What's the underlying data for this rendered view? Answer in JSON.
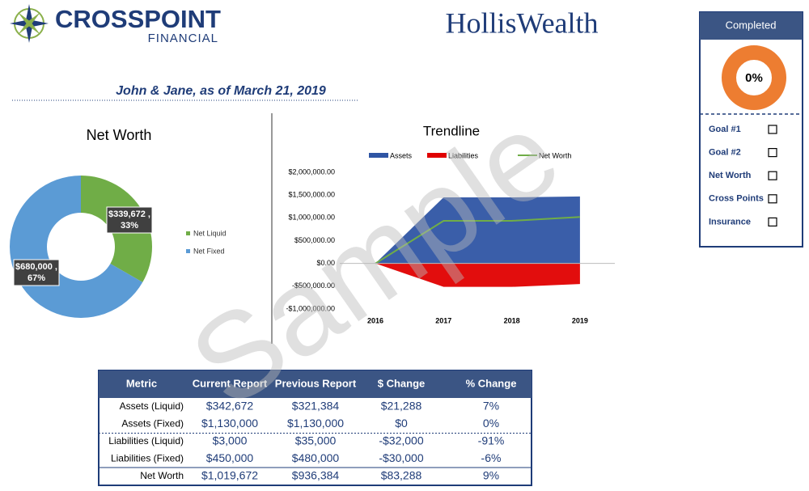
{
  "header": {
    "logo_left": "CROSSPOINT",
    "logo_left_sub": "FINANCIAL",
    "logo_right": "HollisWealth",
    "subtitle": "John & Jane, as of  March 21, 2019",
    "watermark": "Sample"
  },
  "checklist": {
    "title": "Completed",
    "value": 0,
    "value_label": "0%",
    "color": "#ed7d31",
    "items": [
      "Goal #1",
      "Goal #2",
      "Net Worth",
      "Cross Points",
      "Insurance"
    ]
  },
  "chart_data": [
    {
      "type": "donut",
      "title": "Net Worth",
      "categories": [
        "Net Liquid",
        "Net Fixed"
      ],
      "values": [
        339672,
        680000
      ],
      "value_labels": [
        [
          "$339,672 ,",
          "33%"
        ],
        [
          "$680,000 ,",
          "67%"
        ]
      ],
      "colors": [
        "#70ad47",
        "#5b9bd5"
      ]
    },
    {
      "type": "area",
      "title": "Trendline",
      "categories": [
        "2016",
        "2017",
        "2018",
        "2019"
      ],
      "series": [
        {
          "name": "Assets",
          "color": "#2f55a4",
          "kind": "area",
          "values": [
            0,
            1450000,
            1450000,
            1470000
          ]
        },
        {
          "name": "Liabilities",
          "color": "#e00000",
          "kind": "area",
          "values": [
            0,
            -515000,
            -515000,
            -453000
          ]
        },
        {
          "name": "Net Worth",
          "color": "#70ad47",
          "kind": "line",
          "values": [
            0,
            935000,
            935000,
            1020000
          ]
        }
      ],
      "ylim": [
        -1000000,
        2000000
      ],
      "yticks": [
        {
          "value": -1000000,
          "label": "-$1,000,000.00"
        },
        {
          "value": -500000,
          "label": "-$500,000.00"
        },
        {
          "value": 0,
          "label": "$0.00"
        },
        {
          "value": 500000,
          "label": "$500,000.00"
        },
        {
          "value": 1000000,
          "label": "$1,000,000.00"
        },
        {
          "value": 1500000,
          "label": "$1,500,000.00"
        },
        {
          "value": 2000000,
          "label": "$2,000,000.00"
        }
      ],
      "legend": "top"
    }
  ],
  "table": {
    "headers": [
      "Metric",
      "Current Report",
      "Previous Report",
      "$ Change",
      "% Change"
    ],
    "rows": [
      [
        "Assets (Liquid)",
        "$342,672",
        "$321,384",
        "$21,288",
        "7%"
      ],
      [
        "Assets (Fixed)",
        "$1,130,000",
        "$1,130,000",
        "$0",
        "0%"
      ],
      [
        "Liabilities (Liquid)",
        "$3,000",
        "$35,000",
        "-$32,000",
        "-91%"
      ],
      [
        "Liabilities (Fixed)",
        "$450,000",
        "$480,000",
        "-$30,000",
        "-6%"
      ],
      [
        "Net Worth",
        "$1,019,672",
        "$936,384",
        "$83,288",
        "9%"
      ]
    ]
  }
}
